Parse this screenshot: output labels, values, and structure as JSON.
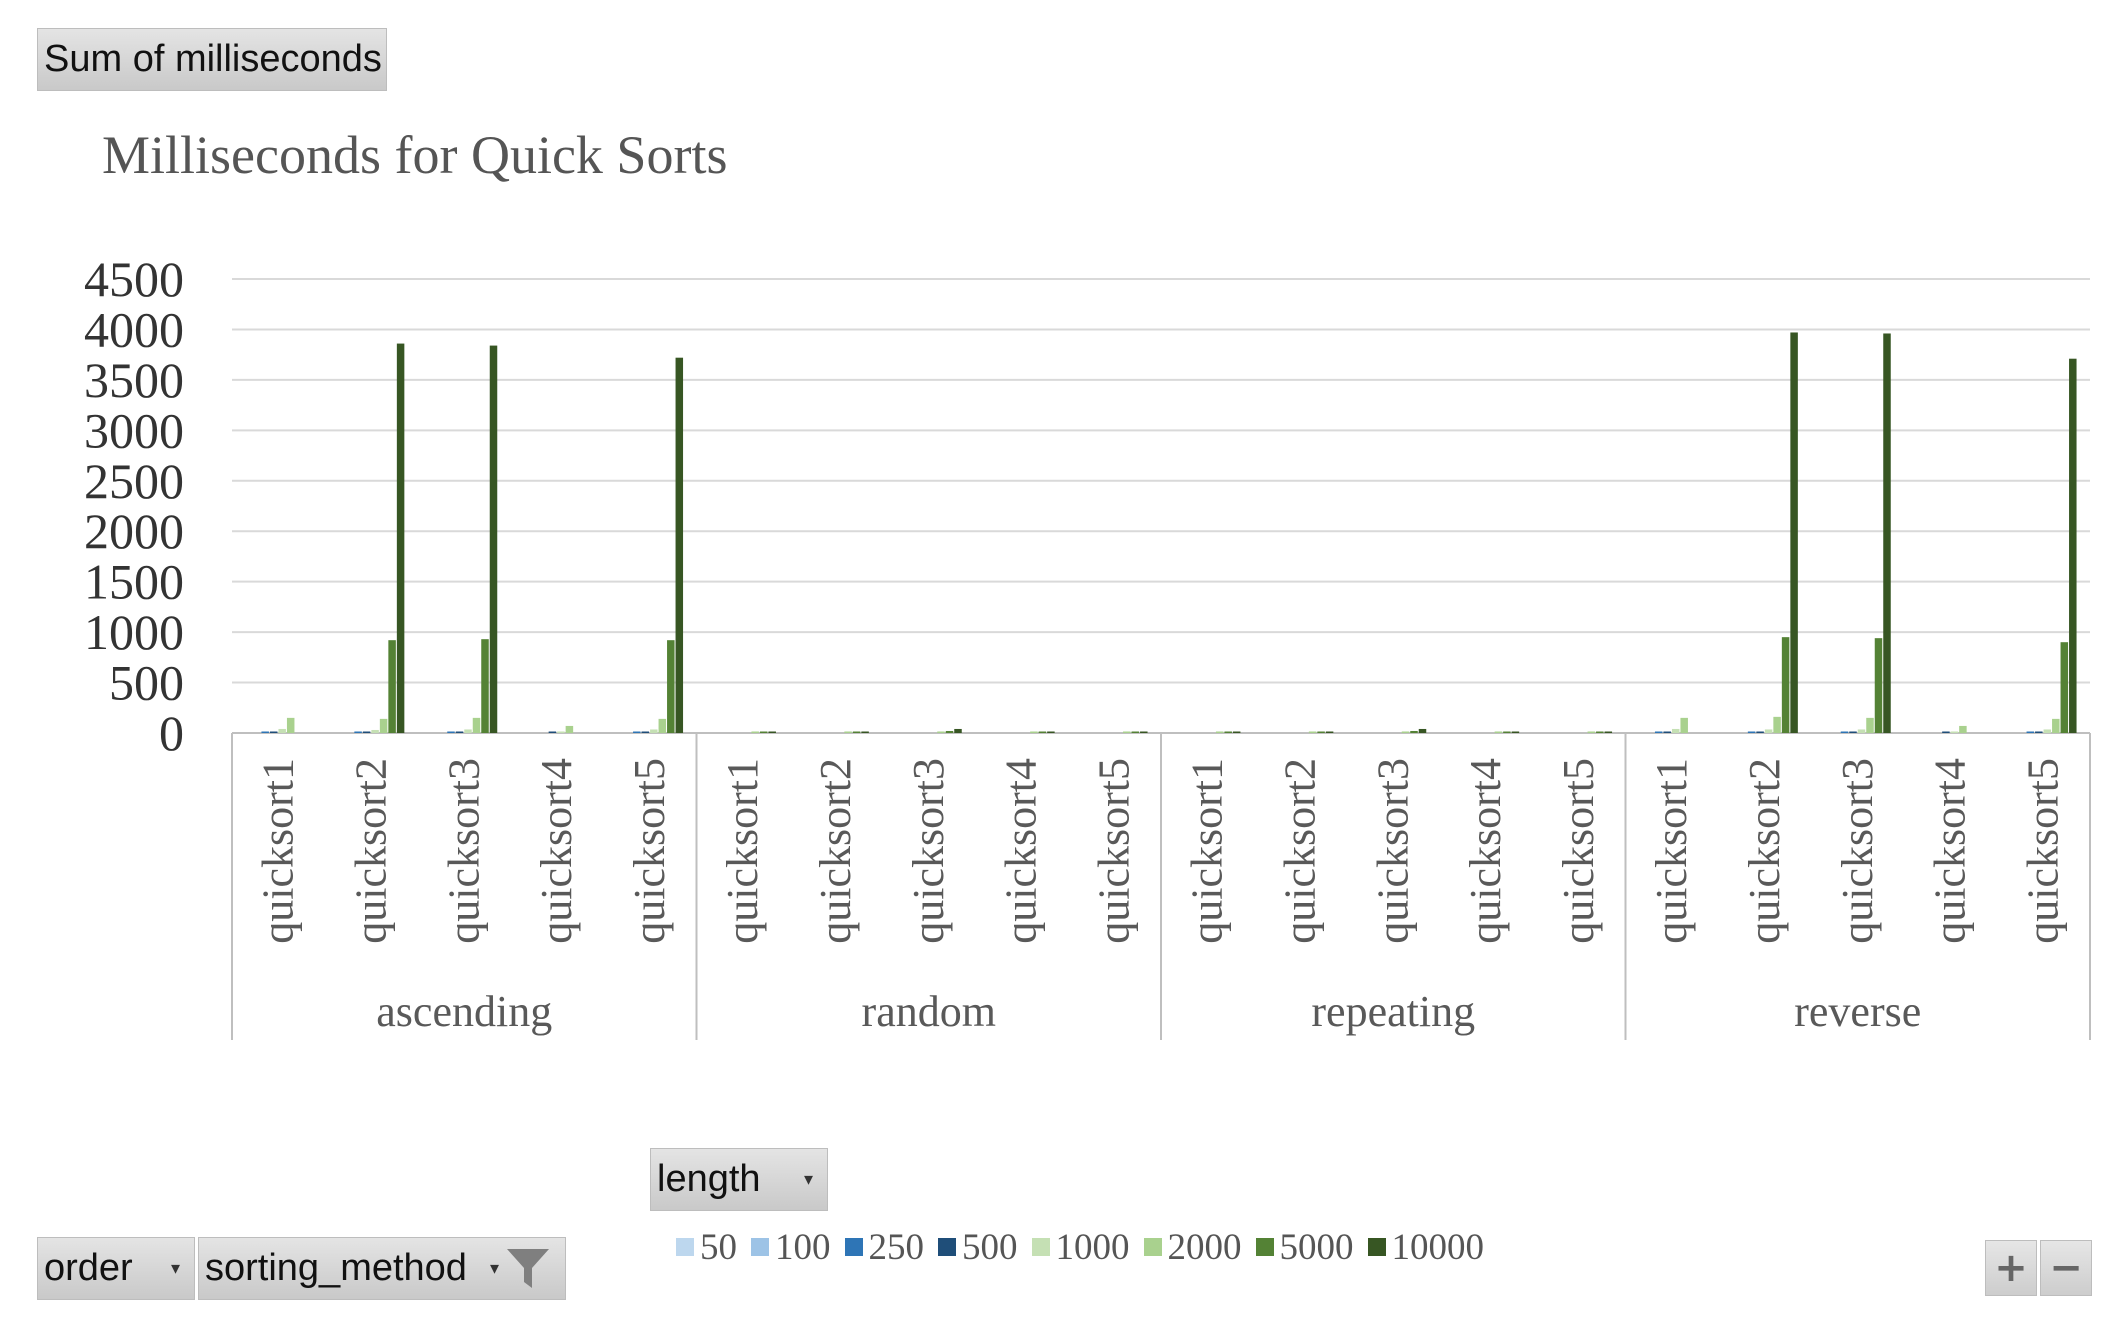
{
  "field_buttons": {
    "values": "Sum of milliseconds",
    "legend_field": "length",
    "axis_field_outer": "order",
    "axis_field_inner": "sorting_method"
  },
  "controls": {
    "zoom_in": "+",
    "zoom_out": "−"
  },
  "colors": {
    "50": "#bdd7ee",
    "100": "#9dc3e6",
    "250": "#2e75b6",
    "500": "#1f4e79",
    "1000": "#c5e0b4",
    "2000": "#a9d18e",
    "5000": "#548235",
    "10000": "#375623",
    "grid": "#d9d9d9",
    "axis": "#bfbfbf",
    "text": "#595959"
  },
  "chart_data": {
    "type": "bar",
    "title": "Milliseconds for Quick Sorts",
    "xlabel": "",
    "ylabel": "",
    "ylim": [
      0,
      4500
    ],
    "yticks": [
      0,
      500,
      1000,
      1500,
      2000,
      2500,
      3000,
      3500,
      4000,
      4500
    ],
    "grid": true,
    "legend_position": "bottom",
    "groups": [
      "ascending",
      "random",
      "repeating",
      "reverse"
    ],
    "subcategories": [
      "quicksort1",
      "quicksort2",
      "quicksort3",
      "quicksort4",
      "quicksort5"
    ],
    "series_names": [
      "50",
      "100",
      "250",
      "500",
      "1000",
      "2000",
      "5000",
      "10000"
    ],
    "data": {
      "ascending": [
        [
          0,
          0,
          1,
          2,
          40,
          150,
          0,
          0
        ],
        [
          0,
          0,
          1,
          2,
          30,
          140,
          920,
          3860
        ],
        [
          0,
          0,
          1,
          2,
          35,
          150,
          930,
          3840
        ],
        [
          0,
          0,
          0,
          1,
          15,
          70,
          0,
          0
        ],
        [
          0,
          0,
          1,
          2,
          35,
          140,
          920,
          3720
        ]
      ],
      "random": [
        [
          0,
          0,
          0,
          0,
          0,
          2,
          5,
          12
        ],
        [
          0,
          0,
          0,
          0,
          0,
          2,
          5,
          14
        ],
        [
          0,
          0,
          0,
          0,
          0,
          15,
          20,
          40
        ],
        [
          0,
          0,
          0,
          0,
          0,
          2,
          4,
          10
        ],
        [
          0,
          0,
          0,
          0,
          0,
          2,
          4,
          10
        ]
      ],
      "repeating": [
        [
          0,
          0,
          0,
          0,
          0,
          2,
          5,
          12
        ],
        [
          0,
          0,
          0,
          0,
          0,
          2,
          5,
          14
        ],
        [
          0,
          0,
          0,
          0,
          0,
          15,
          20,
          40
        ],
        [
          0,
          0,
          0,
          0,
          0,
          2,
          4,
          10
        ],
        [
          0,
          0,
          0,
          0,
          0,
          2,
          4,
          10
        ]
      ],
      "reverse": [
        [
          0,
          0,
          1,
          2,
          40,
          150,
          0,
          0
        ],
        [
          0,
          0,
          1,
          2,
          35,
          160,
          950,
          3970
        ],
        [
          0,
          0,
          1,
          2,
          35,
          150,
          940,
          3960
        ],
        [
          0,
          0,
          0,
          1,
          15,
          70,
          0,
          0
        ],
        [
          0,
          0,
          1,
          2,
          35,
          140,
          900,
          3710
        ]
      ]
    }
  }
}
